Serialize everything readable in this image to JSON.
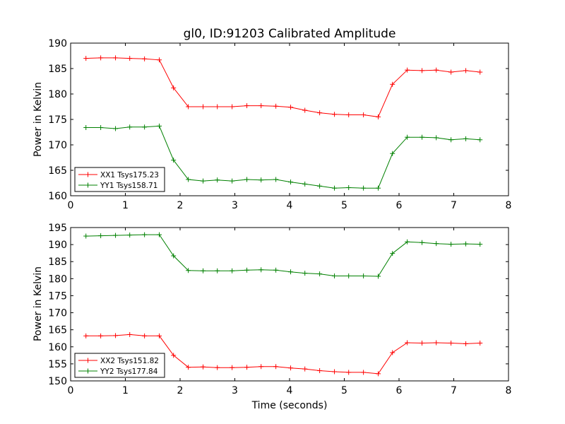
{
  "chart_data": [
    {
      "type": "line",
      "title": "gl0, ID:91203 Calibrated Amplitude",
      "xlabel": "",
      "ylabel": "Power in Kelvin",
      "xlim": [
        0,
        8
      ],
      "ylim": [
        160,
        190
      ],
      "xticks": [
        0,
        1,
        2,
        3,
        4,
        5,
        6,
        7,
        8
      ],
      "yticks": [
        160,
        165,
        170,
        175,
        180,
        185,
        190
      ],
      "grid": false,
      "legend_position": "lower-left",
      "x": [
        0.28,
        0.55,
        0.82,
        1.08,
        1.35,
        1.62,
        1.88,
        2.15,
        2.42,
        2.68,
        2.95,
        3.22,
        3.48,
        3.75,
        4.02,
        4.28,
        4.55,
        4.82,
        5.08,
        5.35,
        5.62,
        5.88,
        6.15,
        6.42,
        6.68,
        6.95,
        7.22,
        7.48
      ],
      "series": [
        {
          "name": "XX1 Tsys175.23",
          "color": "#ff0000",
          "values": [
            187.0,
            187.1,
            187.1,
            187.0,
            186.9,
            186.7,
            181.2,
            177.5,
            177.5,
            177.5,
            177.5,
            177.7,
            177.7,
            177.6,
            177.4,
            176.8,
            176.3,
            176.0,
            175.9,
            175.9,
            175.5,
            181.9,
            184.7,
            184.6,
            184.7,
            184.3,
            184.6,
            184.3
          ]
        },
        {
          "name": "YY1 Tsys158.71",
          "color": "#008000",
          "values": [
            173.4,
            173.4,
            173.2,
            173.5,
            173.5,
            173.7,
            167.0,
            163.2,
            162.9,
            163.1,
            162.9,
            163.2,
            163.1,
            163.2,
            162.7,
            162.3,
            161.9,
            161.5,
            161.6,
            161.5,
            161.5,
            168.3,
            171.5,
            171.5,
            171.4,
            171.0,
            171.2,
            171.0
          ]
        }
      ]
    },
    {
      "type": "line",
      "title": "",
      "xlabel": "Time (seconds)",
      "ylabel": "Power in Kelvin",
      "xlim": [
        0,
        8
      ],
      "ylim": [
        150,
        195
      ],
      "xticks": [
        0,
        1,
        2,
        3,
        4,
        5,
        6,
        7,
        8
      ],
      "yticks": [
        150,
        155,
        160,
        165,
        170,
        175,
        180,
        185,
        190,
        195
      ],
      "grid": false,
      "legend_position": "lower-left",
      "x": [
        0.28,
        0.55,
        0.82,
        1.08,
        1.35,
        1.62,
        1.88,
        2.15,
        2.42,
        2.68,
        2.95,
        3.22,
        3.48,
        3.75,
        4.02,
        4.28,
        4.55,
        4.82,
        5.08,
        5.35,
        5.62,
        5.88,
        6.15,
        6.42,
        6.68,
        6.95,
        7.22,
        7.48
      ],
      "series": [
        {
          "name": "XX2 Tsys151.82",
          "color": "#ff0000",
          "values": [
            163.2,
            163.2,
            163.3,
            163.6,
            163.2,
            163.2,
            157.5,
            154.0,
            154.1,
            153.9,
            153.9,
            154.0,
            154.2,
            154.2,
            153.8,
            153.5,
            153.0,
            152.7,
            152.5,
            152.5,
            152.1,
            158.3,
            161.2,
            161.1,
            161.2,
            161.1,
            160.9,
            161.1
          ]
        },
        {
          "name": "YY2 Tsys177.84",
          "color": "#008000",
          "values": [
            192.5,
            192.6,
            192.7,
            192.8,
            192.9,
            192.9,
            186.7,
            182.4,
            182.3,
            182.3,
            182.3,
            182.5,
            182.6,
            182.5,
            182.0,
            181.6,
            181.4,
            180.8,
            180.8,
            180.8,
            180.7,
            187.4,
            190.8,
            190.6,
            190.3,
            190.1,
            190.2,
            190.1
          ]
        }
      ]
    }
  ]
}
